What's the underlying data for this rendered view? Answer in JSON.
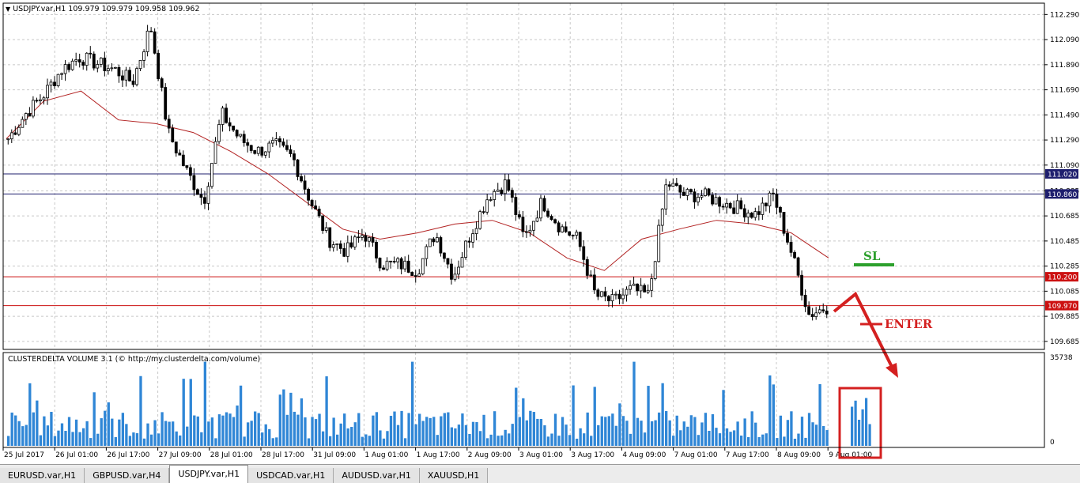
{
  "chart_header": {
    "dropdown_icon": "triangle-down-icon",
    "symbol": "USDJPY.var,H1",
    "ohlc": "109.979 109.979 109.958 109.962"
  },
  "indicator_header": {
    "name": "CLUSTERDELTA VOLUME 3.1",
    "copyright": "(© http://my.clusterdelta.com/volume)"
  },
  "price_axis": {
    "ticks": [
      "112.290",
      "112.090",
      "111.890",
      "111.690",
      "111.490",
      "111.290",
      "111.090",
      "110.885",
      "110.685",
      "110.485",
      "110.285",
      "110.085",
      "109.885",
      "109.685"
    ],
    "tick_values": [
      112.29,
      112.09,
      111.89,
      111.69,
      111.49,
      111.29,
      111.09,
      110.885,
      110.685,
      110.485,
      110.285,
      110.085,
      109.885,
      109.685
    ]
  },
  "volume_axis": {
    "max_label": "35738",
    "zero_label": "0"
  },
  "time_axis": {
    "labels": [
      "25 Jul 2017",
      "26 Jul 01:00",
      "26 Jul 17:00",
      "27 Jul 09:00",
      "28 Jul 01:00",
      "28 Jul 17:00",
      "31 Jul 09:00",
      "1 Aug 01:00",
      "1 Aug 17:00",
      "2 Aug 09:00",
      "3 Aug 01:00",
      "3 Aug 17:00",
      "4 Aug 09:00",
      "7 Aug 01:00",
      "7 Aug 17:00",
      "8 Aug 09:00",
      "9 Aug 01:00"
    ]
  },
  "horizontal_lines": [
    {
      "price": 111.02,
      "label": "111.020",
      "color": "#1f1f6e"
    },
    {
      "price": 110.86,
      "label": "110.860",
      "color": "#1f1f6e"
    },
    {
      "price": 110.2,
      "label": "110.200",
      "color": "#cc1111"
    },
    {
      "price": 109.97,
      "label": "109.970",
      "color": "#cc1111"
    }
  ],
  "annotations": {
    "sl_label": "SL",
    "enter_label": "ENTER",
    "sl_color": "#2ca02c",
    "enter_color": "#d42020"
  },
  "tabs": [
    {
      "label": "EURUSD.var,H1",
      "active": false
    },
    {
      "label": "GBPUSD.var,H4",
      "active": false
    },
    {
      "label": "USDJPY.var,H1",
      "active": true
    },
    {
      "label": "USDCAD.var,H1",
      "active": false
    },
    {
      "label": "AUDUSD.var,H1",
      "active": false
    },
    {
      "label": "XAUUSD,H1",
      "active": false
    }
  ],
  "chart_data": {
    "type": "candlestick",
    "symbol": "USDJPY.var",
    "timeframe": "H1",
    "y_range": [
      109.64,
      112.33
    ],
    "series": [
      {
        "name": "USDJPY.var,H1",
        "anchor_closes": [
          111.3,
          111.5,
          111.65,
          111.85,
          111.95,
          111.9,
          111.85,
          111.75,
          112.2,
          111.35,
          111.05,
          110.8,
          111.5,
          111.3,
          111.2,
          111.25,
          111.15,
          110.8,
          110.5,
          110.4,
          110.55,
          110.3,
          110.3,
          110.25,
          110.55,
          110.2,
          110.55,
          110.85,
          110.95,
          110.5,
          110.8,
          110.6,
          110.5,
          110.05,
          110.0,
          110.1,
          110.05,
          110.95,
          110.85,
          110.85,
          110.8,
          110.75,
          110.7,
          110.85,
          110.4,
          109.9,
          109.96
        ]
      },
      {
        "name": "moving average",
        "points": [
          111.3,
          111.6,
          111.68,
          111.45,
          111.42,
          111.35,
          111.2,
          111.02,
          110.8,
          110.58,
          110.5,
          110.55,
          110.62,
          110.65,
          110.55,
          110.35,
          110.25,
          110.5,
          110.58,
          110.65,
          110.62,
          110.55,
          110.35
        ]
      },
      {
        "name": "CLUSTERDELTA VOLUME 3.1",
        "max": 35738
      }
    ]
  }
}
